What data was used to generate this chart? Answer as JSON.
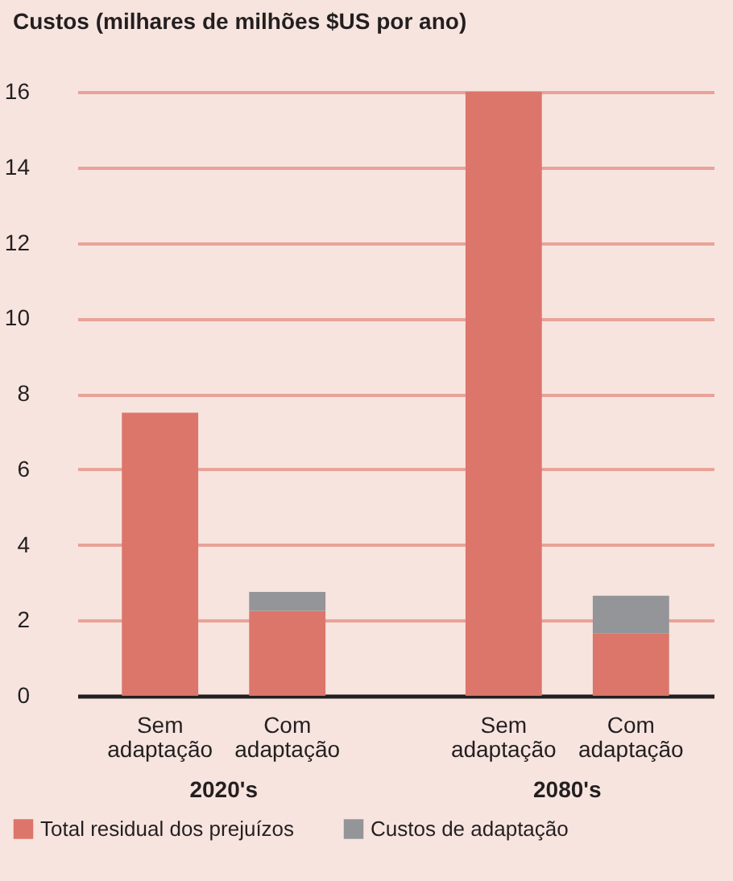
{
  "chart_data": {
    "type": "bar",
    "title": "Custos (milhares de milhões $US por ano)",
    "stacked": true,
    "categories": [
      "Sem adaptação",
      "Com adaptação",
      "Sem adaptação",
      "Com adaptação"
    ],
    "series": [
      {
        "name": "Total residual dos prejuízos",
        "color": "#dc756a",
        "values": [
          7.5,
          2.25,
          16,
          1.65
        ]
      },
      {
        "name": "Custos de adaptação",
        "color": "#939598",
        "values": [
          0,
          0.5,
          0,
          1.0
        ]
      }
    ],
    "annotations": [
      "2020's",
      "2080's"
    ],
    "ylim": [
      0,
      16
    ],
    "yticks": [
      0,
      2,
      4,
      6,
      8,
      10,
      12,
      14,
      16
    ],
    "grid": "y",
    "legend": "bottom"
  }
}
